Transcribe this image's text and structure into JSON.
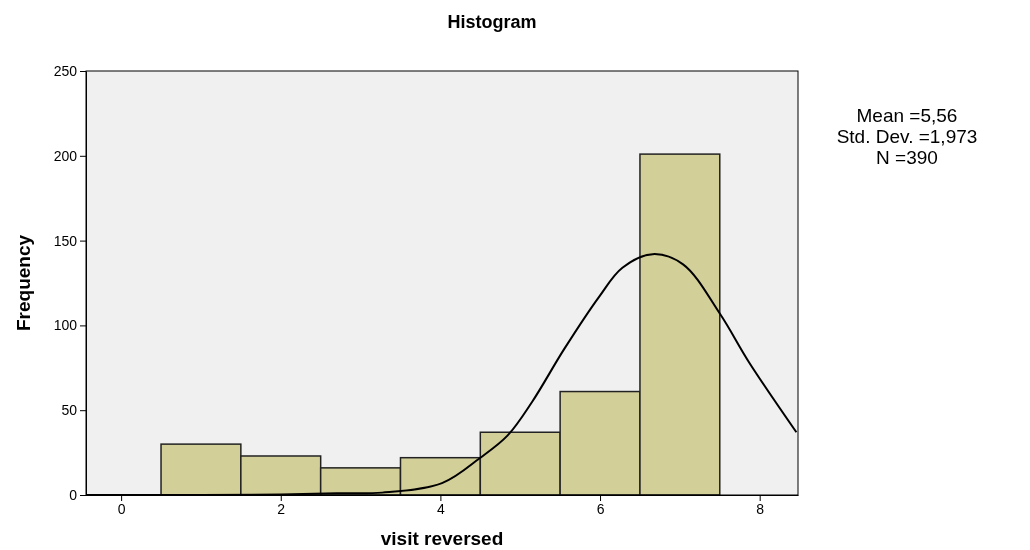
{
  "chart_data": {
    "type": "histogram",
    "title": "Histogram",
    "xlabel": "visit reversed",
    "ylabel": "Frequency",
    "bins": [
      0.5,
      1.5,
      2.5,
      3.5,
      4.5,
      5.5,
      6.5,
      7.5
    ],
    "values": [
      30,
      23,
      16,
      22,
      37,
      61,
      201
    ],
    "color": "#d3cf99",
    "xlim": [
      -0.44,
      8.48
    ],
    "xticks": [
      0,
      2,
      4,
      6,
      8
    ],
    "ylim": [
      0,
      250
    ],
    "yticks": [
      0,
      50,
      100,
      150,
      200,
      250
    ],
    "grid": false,
    "series": [
      {
        "type": "line",
        "color": "#000000",
        "x": [
          -0.44,
          1,
          2,
          2.7,
          3.27,
          4.02,
          4.5,
          4.84,
          5.15,
          5.55,
          5.99,
          6.28,
          6.66,
          7.04,
          7.5,
          7.87,
          8.46
        ],
        "values": [
          0,
          0,
          0.3,
          1,
          1.4,
          7,
          22,
          35,
          55,
          86,
          117,
          134,
          142,
          136,
          107,
          78,
          37
        ]
      }
    ],
    "annotations": [
      "Mean =5,56",
      "Std. Dev. =1,973",
      "N =390"
    ]
  }
}
